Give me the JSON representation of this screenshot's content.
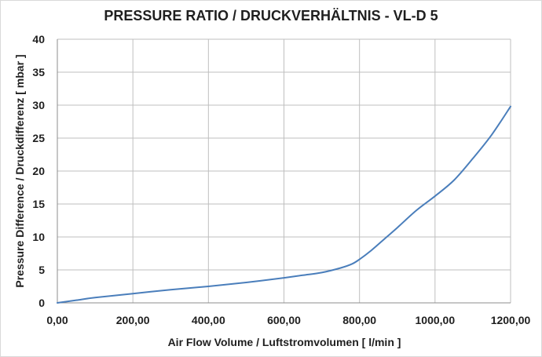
{
  "chart_data": {
    "type": "line",
    "title": "PRESSURE RATIO / DRUCKVERHÄLTNIS - VL-D 5",
    "xlabel": "Air Flow Volume / Luftstromvolumen [ l/min ]",
    "ylabel": "Pressure Difference / Druckdifferenz [ mbar ]",
    "xlim": [
      0,
      1200
    ],
    "ylim": [
      0,
      40
    ],
    "x_ticks": [
      0,
      200,
      400,
      600,
      800,
      1000,
      1200
    ],
    "x_tick_labels": [
      "0,00",
      "200,00",
      "400,00",
      "600,00",
      "800,00",
      "1000,00",
      "1200,00"
    ],
    "y_ticks": [
      0,
      5,
      10,
      15,
      20,
      25,
      30,
      35,
      40
    ],
    "y_tick_labels": [
      "0",
      "5",
      "10",
      "15",
      "20",
      "25",
      "30",
      "35",
      "40"
    ],
    "grid": true,
    "legend": "none",
    "series": [
      {
        "color": "#4a7ebb",
        "x": [
          0,
          50,
          100,
          200,
          300,
          400,
          500,
          600,
          650,
          700,
          750,
          780,
          800,
          830,
          870,
          900,
          950,
          1000,
          1050,
          1100,
          1150,
          1200
        ],
        "y": [
          0,
          0.4,
          0.8,
          1.4,
          2.0,
          2.5,
          3.1,
          3.8,
          4.2,
          4.6,
          5.3,
          5.9,
          6.6,
          7.9,
          9.9,
          11.4,
          14.0,
          16.2,
          18.6,
          21.9,
          25.5,
          29.8
        ]
      }
    ]
  }
}
